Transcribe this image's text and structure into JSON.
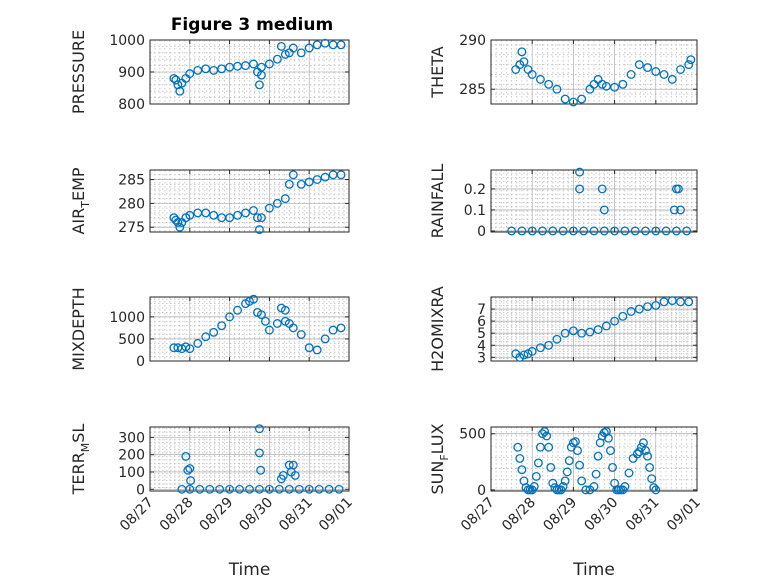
{
  "figure_title": "Figure 3 medium",
  "marker_color": "#0072BD",
  "x_tick_labels": [
    "08/27",
    "08/28",
    "08/29",
    "08/30",
    "08/31",
    "09/01"
  ],
  "chart_data": [
    {
      "type": "scatter",
      "ylabel": [
        {
          "t": "PRESSURE"
        }
      ],
      "xlabel": "",
      "ylim": [
        800,
        1000
      ],
      "yticks": [
        800,
        900,
        1000
      ],
      "xlim": [
        0,
        5
      ],
      "x": [
        0.6,
        0.65,
        0.7,
        0.75,
        0.8,
        0.9,
        1.0,
        1.2,
        1.4,
        1.6,
        1.8,
        2.0,
        2.2,
        2.4,
        2.6,
        2.7,
        2.8,
        3.0,
        3.2,
        3.4,
        3.6,
        3.8,
        4.0,
        4.2,
        4.4,
        4.6,
        4.8,
        2.75,
        2.8,
        3.3,
        3.5
      ],
      "y": [
        880,
        875,
        860,
        840,
        865,
        880,
        895,
        905,
        910,
        905,
        910,
        915,
        918,
        920,
        925,
        900,
        915,
        925,
        940,
        955,
        975,
        960,
        975,
        985,
        990,
        985,
        985,
        860,
        890,
        980,
        960
      ]
    },
    {
      "type": "scatter",
      "ylabel": [
        {
          "t": "THETA"
        }
      ],
      "xlabel": "",
      "ylim": [
        283.5,
        290
      ],
      "yticks": [
        285,
        290
      ],
      "xlim": [
        0,
        5
      ],
      "x": [
        0.6,
        0.7,
        0.75,
        0.8,
        0.9,
        1.0,
        1.2,
        1.4,
        1.6,
        1.8,
        2.0,
        2.2,
        2.4,
        2.5,
        2.6,
        2.7,
        2.8,
        3.0,
        3.2,
        3.4,
        3.6,
        3.8,
        4.0,
        4.2,
        4.4,
        4.6,
        4.8,
        4.85
      ],
      "y": [
        287,
        287.5,
        288.8,
        287.8,
        287,
        286.5,
        286,
        285.5,
        285,
        284,
        283.7,
        284,
        285,
        285.5,
        286,
        285.5,
        285.3,
        285.2,
        285.5,
        286.5,
        287.5,
        287.2,
        286.8,
        286.5,
        286.0,
        287.0,
        287.5,
        288
      ]
    },
    {
      "type": "scatter",
      "ylabel": [
        {
          "t": "AIR"
        },
        {
          "t": "T",
          "sub": true
        },
        {
          "t": "EMP"
        }
      ],
      "xlabel": "",
      "ylim": [
        274,
        287
      ],
      "yticks": [
        275,
        280,
        285
      ],
      "xlim": [
        0,
        5
      ],
      "x": [
        0.6,
        0.65,
        0.7,
        0.75,
        0.8,
        0.9,
        1.0,
        1.2,
        1.4,
        1.6,
        1.8,
        2.0,
        2.2,
        2.4,
        2.6,
        2.7,
        2.75,
        2.8,
        3.0,
        3.2,
        3.4,
        3.5,
        3.6,
        3.8,
        4.0,
        4.2,
        4.4,
        4.6,
        4.8
      ],
      "y": [
        277,
        276.5,
        276,
        275,
        276,
        277,
        277.5,
        278,
        278,
        277.5,
        277,
        277,
        277.5,
        278,
        278.5,
        277,
        274.5,
        277,
        279,
        280,
        281,
        284,
        286,
        284,
        284.5,
        285,
        285.5,
        286,
        286
      ]
    },
    {
      "type": "scatter",
      "ylabel": [
        {
          "t": "RAINFALL"
        }
      ],
      "xlabel": "",
      "ylim": [
        -0.005,
        0.29
      ],
      "yticks": [
        0,
        0.1,
        0.2
      ],
      "xlim": [
        0,
        5
      ],
      "x": [
        0.5,
        0.75,
        1.0,
        1.25,
        1.5,
        1.75,
        2.0,
        2.25,
        2.5,
        2.75,
        3.0,
        3.25,
        3.5,
        3.75,
        4.0,
        4.25,
        4.5,
        4.75,
        2.15,
        2.15,
        2.7,
        2.75,
        4.45,
        4.5,
        4.55,
        4.6
      ],
      "y": [
        0,
        0,
        0,
        0,
        0,
        0,
        0,
        0,
        0,
        0,
        0,
        0,
        0,
        0,
        0,
        0,
        0,
        0,
        0.28,
        0.2,
        0.2,
        0.1,
        0.1,
        0.2,
        0.2,
        0.1
      ]
    },
    {
      "type": "scatter",
      "ylabel": [
        {
          "t": "MIXDEPTH"
        }
      ],
      "xlabel": "",
      "ylim": [
        0,
        1450
      ],
      "yticks": [
        0,
        500,
        1000
      ],
      "xlim": [
        0,
        5
      ],
      "x": [
        0.6,
        0.7,
        0.8,
        0.9,
        1.0,
        1.2,
        1.4,
        1.6,
        1.8,
        2.0,
        2.2,
        2.4,
        2.5,
        2.6,
        2.7,
        2.8,
        2.9,
        3.0,
        3.2,
        3.4,
        3.5,
        3.6,
        3.8,
        4.0,
        4.2,
        4.4,
        4.6,
        4.8,
        3.3,
        3.4
      ],
      "y": [
        300,
        300,
        280,
        320,
        280,
        400,
        550,
        650,
        800,
        1000,
        1150,
        1300,
        1350,
        1400,
        1100,
        1050,
        900,
        700,
        850,
        900,
        850,
        750,
        600,
        300,
        250,
        500,
        700,
        750,
        1200,
        1150
      ]
    },
    {
      "type": "scatter",
      "ylabel": [
        {
          "t": "H2OMIXRA"
        }
      ],
      "xlabel": "",
      "ylim": [
        2.7,
        8
      ],
      "yticks": [
        3,
        4,
        5,
        6,
        7
      ],
      "xlim": [
        0,
        5
      ],
      "x": [
        0.6,
        0.7,
        0.8,
        0.9,
        1.0,
        1.2,
        1.4,
        1.6,
        1.8,
        2.0,
        2.2,
        2.4,
        2.6,
        2.8,
        3.0,
        3.2,
        3.4,
        3.6,
        3.8,
        4.0,
        4.2,
        4.4,
        4.6,
        4.8
      ],
      "y": [
        3.3,
        3.0,
        3.2,
        3.3,
        3.5,
        3.8,
        4.0,
        4.5,
        5.0,
        5.2,
        5.0,
        5.1,
        5.3,
        5.6,
        6.0,
        6.4,
        6.8,
        7.0,
        7.2,
        7.3,
        7.6,
        7.7,
        7.6,
        7.6
      ]
    },
    {
      "type": "scatter",
      "ylabel": [
        {
          "t": "TERR"
        },
        {
          "t": "M",
          "sub": true
        },
        {
          "t": "SL"
        }
      ],
      "xlabel": "Time",
      "ylim": [
        -10,
        360
      ],
      "yticks": [
        0,
        100,
        200,
        300
      ],
      "xlim": [
        0,
        5
      ],
      "x": [
        0.8,
        1.0,
        1.25,
        1.5,
        1.75,
        2.0,
        2.25,
        2.5,
        2.75,
        3.0,
        3.25,
        3.5,
        3.75,
        4.0,
        4.25,
        4.5,
        4.75,
        0.9,
        0.95,
        1.0,
        1.02,
        2.75,
        2.75,
        2.78,
        3.3,
        3.35,
        3.5,
        3.55,
        3.6,
        3.65
      ],
      "y": [
        0,
        0,
        0,
        0,
        0,
        0,
        0,
        0,
        0,
        0,
        0,
        0,
        0,
        0,
        0,
        0,
        0,
        190,
        110,
        120,
        50,
        350,
        210,
        110,
        60,
        80,
        140,
        100,
        140,
        80
      ]
    },
    {
      "type": "scatter",
      "ylabel": [
        {
          "t": "SUN"
        },
        {
          "t": "F",
          "sub": true
        },
        {
          "t": "LUX"
        }
      ],
      "xlabel": "Time",
      "ylim": [
        -10,
        560
      ],
      "yticks": [
        0,
        500
      ],
      "xlim": [
        0,
        5
      ],
      "x": [
        0.65,
        0.7,
        0.75,
        0.8,
        0.85,
        0.9,
        0.95,
        1.0,
        1.05,
        1.1,
        1.15,
        1.2,
        1.25,
        1.3,
        1.35,
        1.4,
        1.45,
        1.5,
        1.55,
        1.6,
        1.65,
        1.7,
        1.75,
        1.8,
        1.85,
        1.9,
        1.95,
        2.0,
        2.05,
        2.1,
        2.15,
        2.2,
        2.3,
        2.4,
        2.5,
        2.55,
        2.6,
        2.65,
        2.7,
        2.75,
        2.8,
        2.85,
        2.9,
        2.95,
        3.0,
        3.05,
        3.1,
        3.15,
        3.2,
        3.25,
        3.35,
        3.45,
        3.55,
        3.6,
        3.65,
        3.7,
        3.75,
        3.8,
        3.85,
        3.9,
        3.95,
        4.0
      ],
      "y": [
        380,
        280,
        180,
        80,
        20,
        0,
        0,
        0,
        30,
        120,
        240,
        380,
        500,
        520,
        480,
        380,
        200,
        60,
        20,
        0,
        0,
        0,
        30,
        80,
        160,
        260,
        380,
        420,
        430,
        350,
        220,
        80,
        0,
        0,
        30,
        140,
        300,
        420,
        480,
        510,
        520,
        460,
        350,
        200,
        60,
        0,
        0,
        0,
        0,
        30,
        150,
        280,
        320,
        340,
        380,
        420,
        350,
        300,
        200,
        100,
        20,
        0
      ]
    }
  ]
}
